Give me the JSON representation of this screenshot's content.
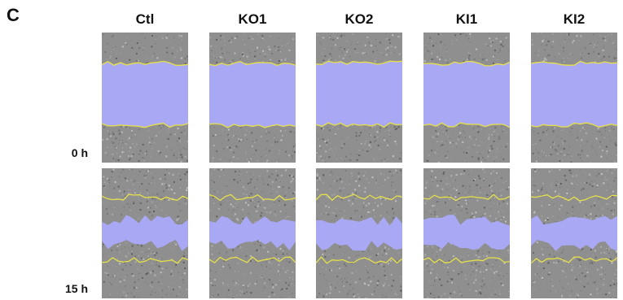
{
  "panel_letter": "C",
  "columns": [
    "Ctl",
    "KO1",
    "KO2",
    "KI1",
    "KI2"
  ],
  "rows": [
    "0 h",
    "15 h"
  ],
  "colors": {
    "background_cells": "#8f8f8f",
    "wound_fill": "#a9a8f4",
    "edge_line": "#e6e04a"
  }
}
